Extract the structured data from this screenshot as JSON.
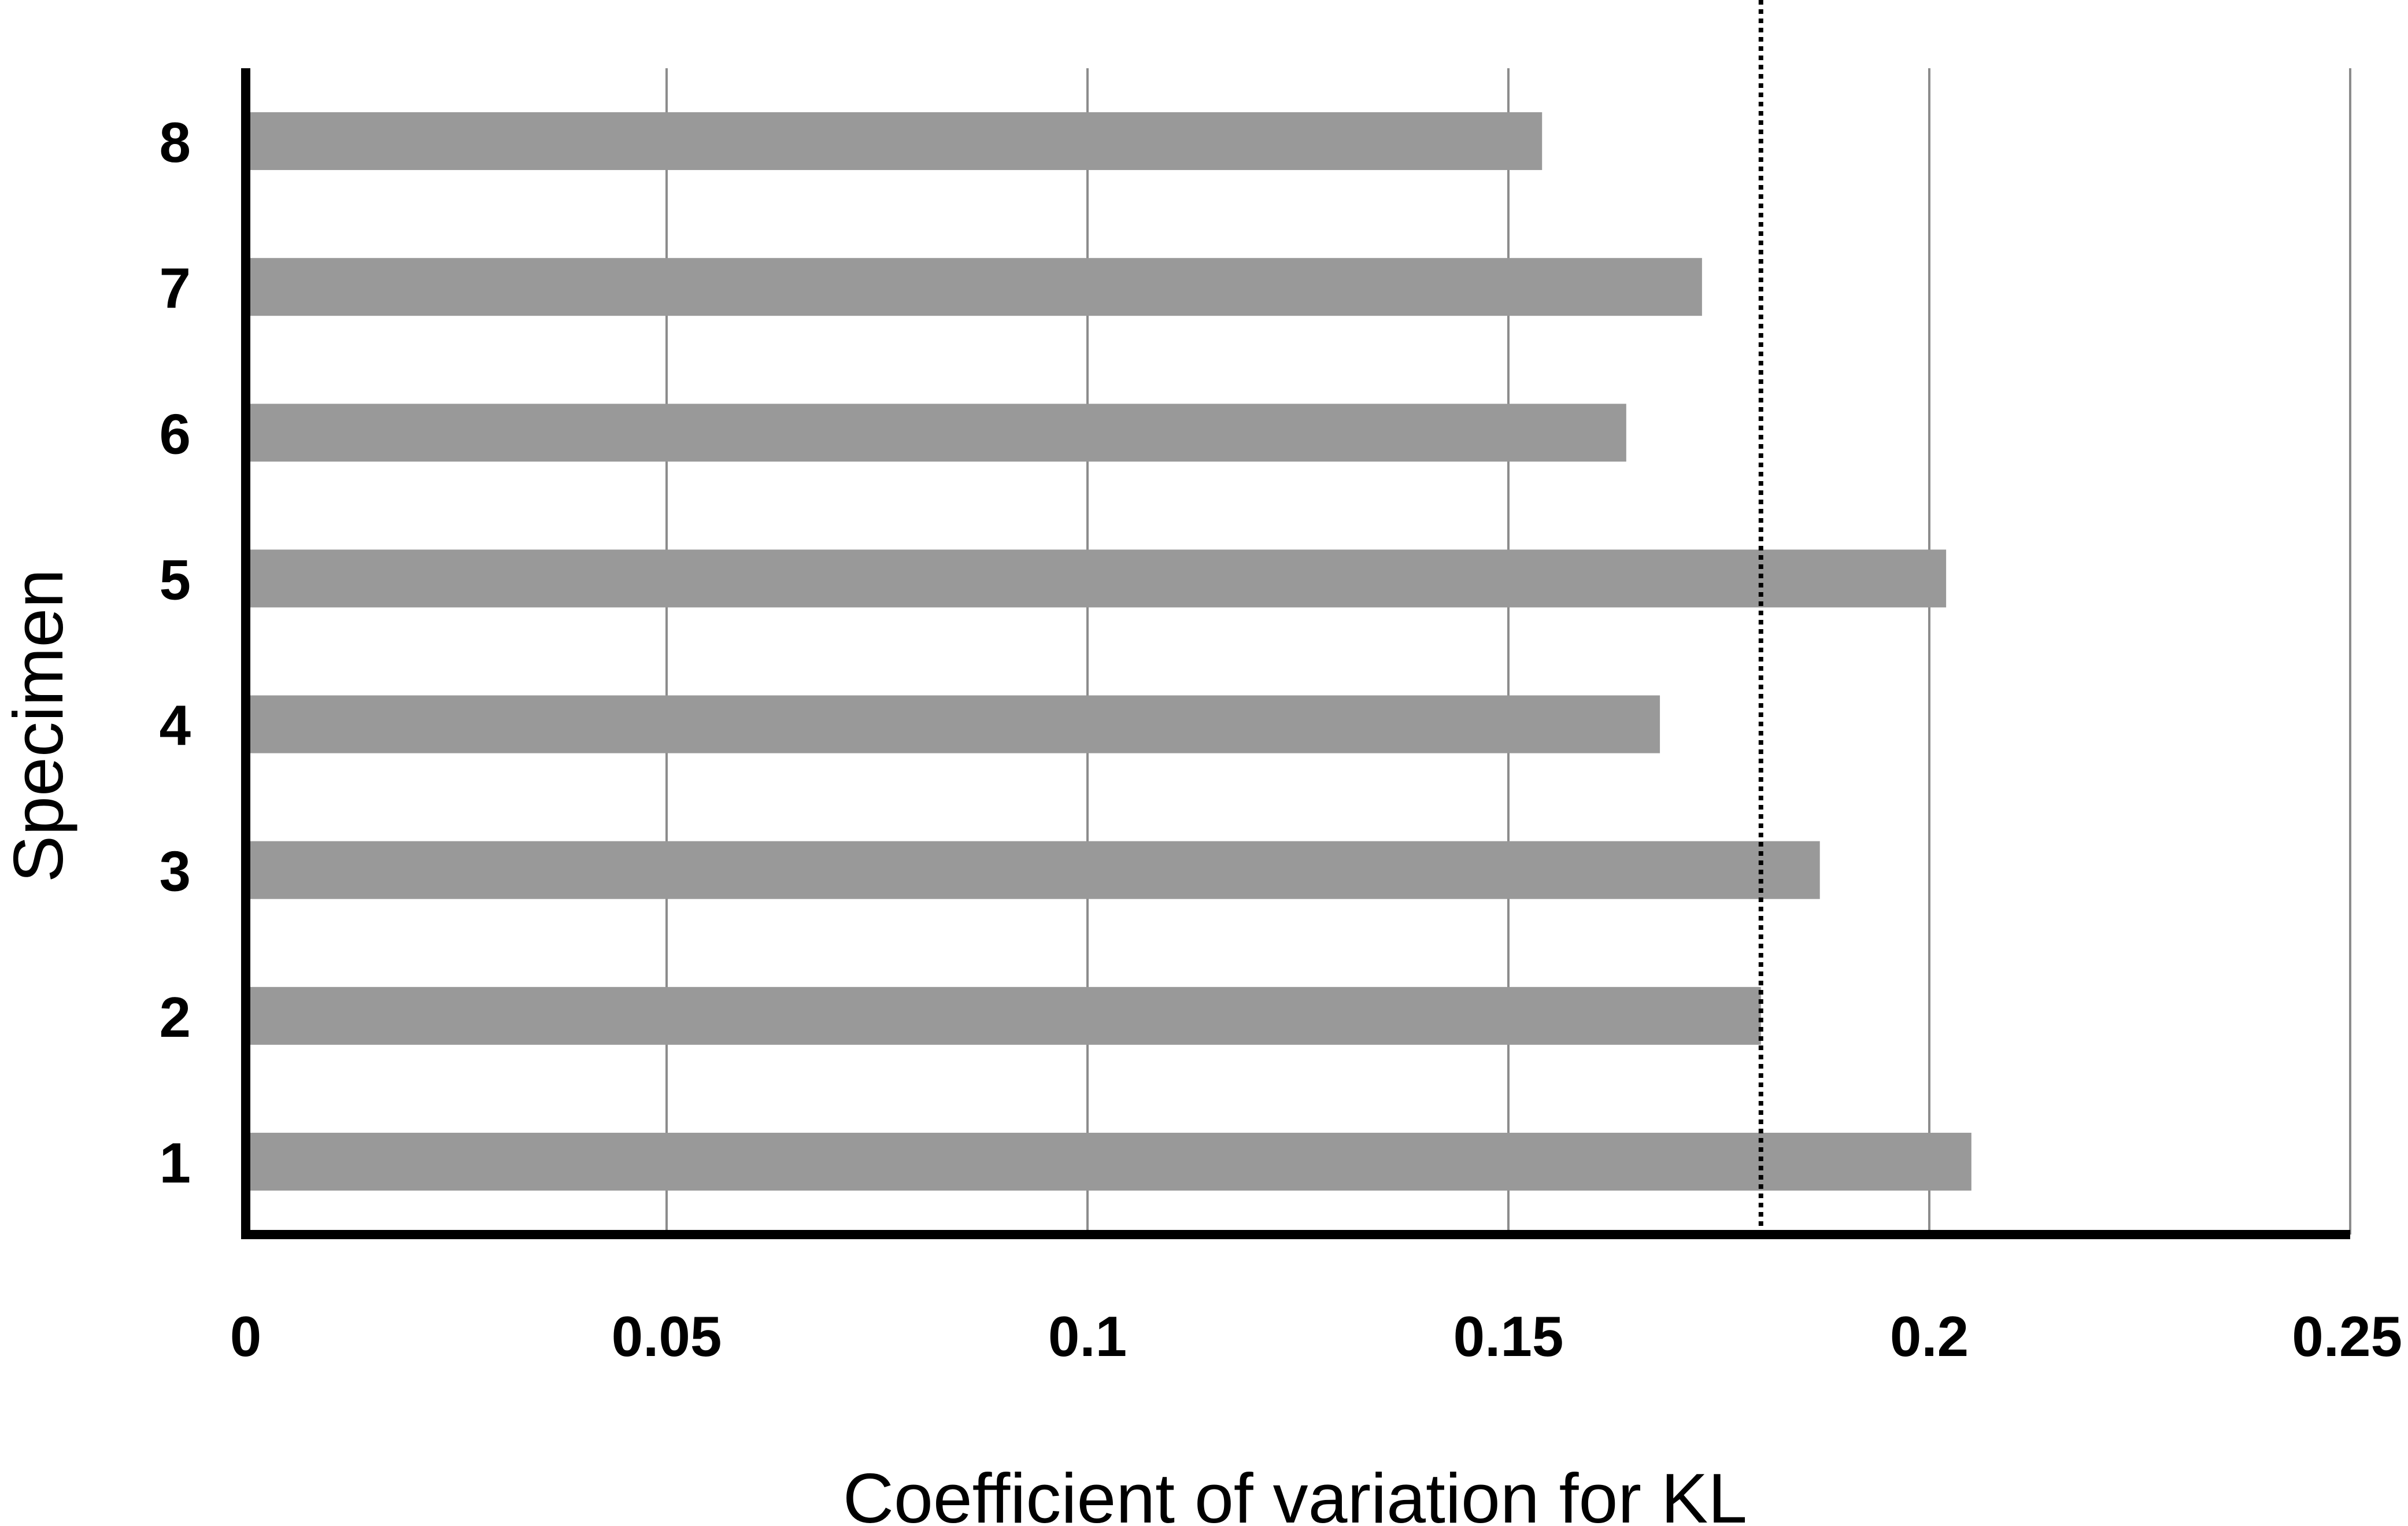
{
  "chart_data": {
    "type": "bar",
    "orientation": "horizontal",
    "categories": [
      "1",
      "2",
      "3",
      "4",
      "5",
      "6",
      "7",
      "8"
    ],
    "values": [
      0.205,
      0.18,
      0.187,
      0.168,
      0.202,
      0.164,
      0.173,
      0.154
    ],
    "reference_line": {
      "value": 0.18,
      "style": "dotted"
    },
    "title": "",
    "xlabel": "Coefficient of variation for KL",
    "ylabel": "Specimen",
    "xlim": [
      0,
      0.25
    ],
    "xticks": [
      "0",
      "0.05",
      "0.1",
      "0.15",
      "0.2",
      "0.25"
    ],
    "xtick_values": [
      0,
      0.05,
      0.1,
      0.15,
      0.2,
      0.25
    ],
    "grid": "vertical",
    "legend": "none",
    "bar_color": "#999999"
  }
}
